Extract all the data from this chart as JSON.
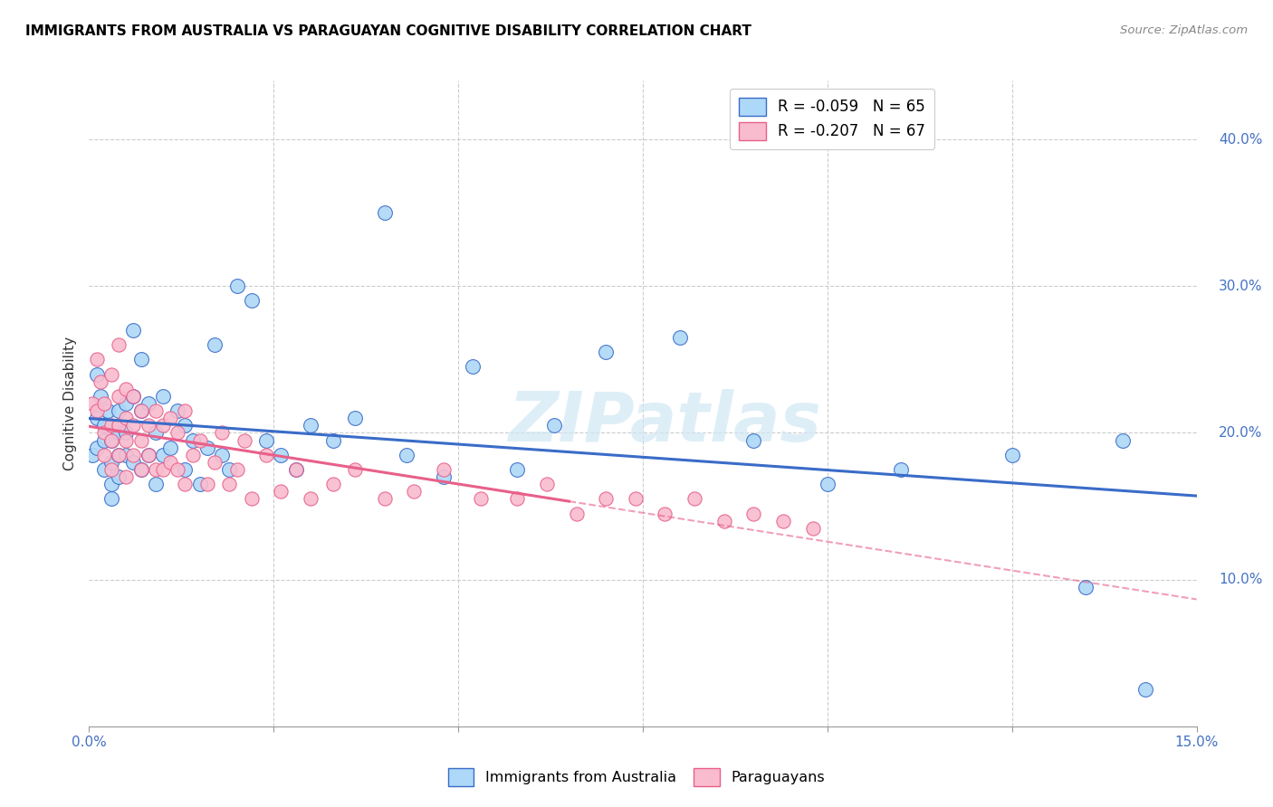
{
  "title": "IMMIGRANTS FROM AUSTRALIA VS PARAGUAYAN COGNITIVE DISABILITY CORRELATION CHART",
  "source": "Source: ZipAtlas.com",
  "ylabel": "Cognitive Disability",
  "legend_r1": "R = -0.059   N = 65",
  "legend_r2": "R = -0.207   N = 67",
  "color_blue": "#ADD8F7",
  "color_pink": "#F9BCCF",
  "line_blue": "#3A6CC8",
  "line_pink": "#E8608A",
  "xlim": [
    0.0,
    0.15
  ],
  "ylim": [
    0.0,
    0.44
  ],
  "australia_x": [
    0.0005,
    0.001,
    0.001,
    0.001,
    0.0015,
    0.002,
    0.002,
    0.002,
    0.0025,
    0.003,
    0.003,
    0.003,
    0.003,
    0.004,
    0.004,
    0.004,
    0.004,
    0.005,
    0.005,
    0.005,
    0.006,
    0.006,
    0.006,
    0.007,
    0.007,
    0.007,
    0.008,
    0.008,
    0.009,
    0.009,
    0.01,
    0.01,
    0.011,
    0.012,
    0.013,
    0.013,
    0.014,
    0.015,
    0.016,
    0.017,
    0.018,
    0.019,
    0.02,
    0.022,
    0.024,
    0.026,
    0.028,
    0.03,
    0.033,
    0.036,
    0.04,
    0.043,
    0.048,
    0.052,
    0.058,
    0.063,
    0.07,
    0.08,
    0.09,
    0.1,
    0.11,
    0.125,
    0.135,
    0.14,
    0.143
  ],
  "australia_y": [
    0.185,
    0.24,
    0.21,
    0.19,
    0.225,
    0.205,
    0.195,
    0.175,
    0.215,
    0.195,
    0.18,
    0.165,
    0.155,
    0.215,
    0.2,
    0.185,
    0.17,
    0.22,
    0.2,
    0.185,
    0.27,
    0.225,
    0.18,
    0.25,
    0.215,
    0.175,
    0.22,
    0.185,
    0.2,
    0.165,
    0.225,
    0.185,
    0.19,
    0.215,
    0.205,
    0.175,
    0.195,
    0.165,
    0.19,
    0.26,
    0.185,
    0.175,
    0.3,
    0.29,
    0.195,
    0.185,
    0.175,
    0.205,
    0.195,
    0.21,
    0.35,
    0.185,
    0.17,
    0.245,
    0.175,
    0.205,
    0.255,
    0.265,
    0.195,
    0.165,
    0.175,
    0.185,
    0.095,
    0.195,
    0.025
  ],
  "paraguayan_x": [
    0.0005,
    0.001,
    0.001,
    0.0015,
    0.002,
    0.002,
    0.002,
    0.003,
    0.003,
    0.003,
    0.003,
    0.004,
    0.004,
    0.004,
    0.004,
    0.005,
    0.005,
    0.005,
    0.005,
    0.006,
    0.006,
    0.006,
    0.007,
    0.007,
    0.007,
    0.008,
    0.008,
    0.009,
    0.009,
    0.01,
    0.01,
    0.011,
    0.011,
    0.012,
    0.012,
    0.013,
    0.013,
    0.014,
    0.015,
    0.016,
    0.017,
    0.018,
    0.019,
    0.02,
    0.021,
    0.022,
    0.024,
    0.026,
    0.028,
    0.03,
    0.033,
    0.036,
    0.04,
    0.044,
    0.048,
    0.053,
    0.058,
    0.062,
    0.066,
    0.07,
    0.074,
    0.078,
    0.082,
    0.086,
    0.09,
    0.094,
    0.098
  ],
  "paraguayan_y": [
    0.22,
    0.25,
    0.215,
    0.235,
    0.2,
    0.22,
    0.185,
    0.24,
    0.205,
    0.195,
    0.175,
    0.26,
    0.225,
    0.205,
    0.185,
    0.23,
    0.21,
    0.195,
    0.17,
    0.225,
    0.205,
    0.185,
    0.215,
    0.195,
    0.175,
    0.205,
    0.185,
    0.215,
    0.175,
    0.205,
    0.175,
    0.21,
    0.18,
    0.2,
    0.175,
    0.215,
    0.165,
    0.185,
    0.195,
    0.165,
    0.18,
    0.2,
    0.165,
    0.175,
    0.195,
    0.155,
    0.185,
    0.16,
    0.175,
    0.155,
    0.165,
    0.175,
    0.155,
    0.16,
    0.175,
    0.155,
    0.155,
    0.165,
    0.145,
    0.155,
    0.155,
    0.145,
    0.155,
    0.14,
    0.145,
    0.14,
    0.135
  ]
}
